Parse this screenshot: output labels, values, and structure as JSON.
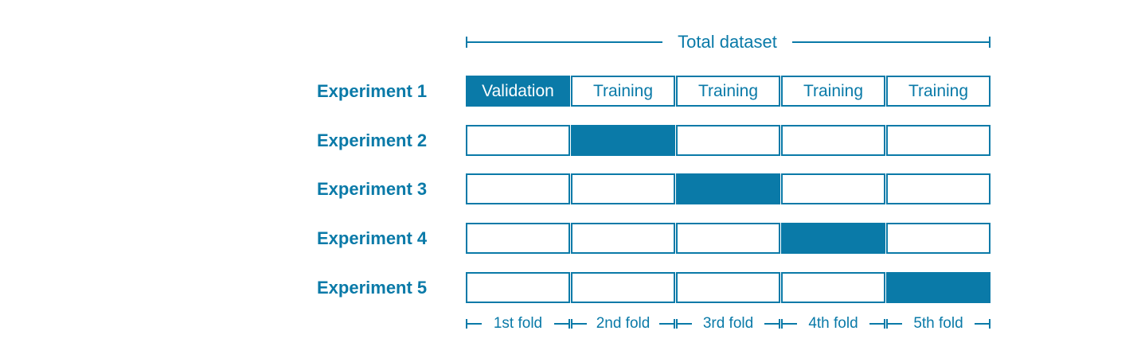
{
  "title": "",
  "total_label": "Total dataset",
  "colors": {
    "accent": "#0a7aa8",
    "background": "#ffffff"
  },
  "rows": [
    {
      "label": "Experiment 1",
      "validation_fold": 1,
      "cells": [
        "Validation",
        "Training",
        "Training",
        "Training",
        "Training"
      ]
    },
    {
      "label": "Experiment 2",
      "validation_fold": 2,
      "cells": [
        "",
        "",
        "",
        "",
        ""
      ]
    },
    {
      "label": "Experiment 3",
      "validation_fold": 3,
      "cells": [
        "",
        "",
        "",
        "",
        ""
      ]
    },
    {
      "label": "Experiment 4",
      "validation_fold": 4,
      "cells": [
        "",
        "",
        "",
        "",
        ""
      ]
    },
    {
      "label": "Experiment 5",
      "validation_fold": 5,
      "cells": [
        "",
        "",
        "",
        "",
        ""
      ]
    }
  ],
  "fold_labels": [
    "1st fold",
    "2nd fold",
    "3rd fold",
    "4th fold",
    "5th fold"
  ]
}
